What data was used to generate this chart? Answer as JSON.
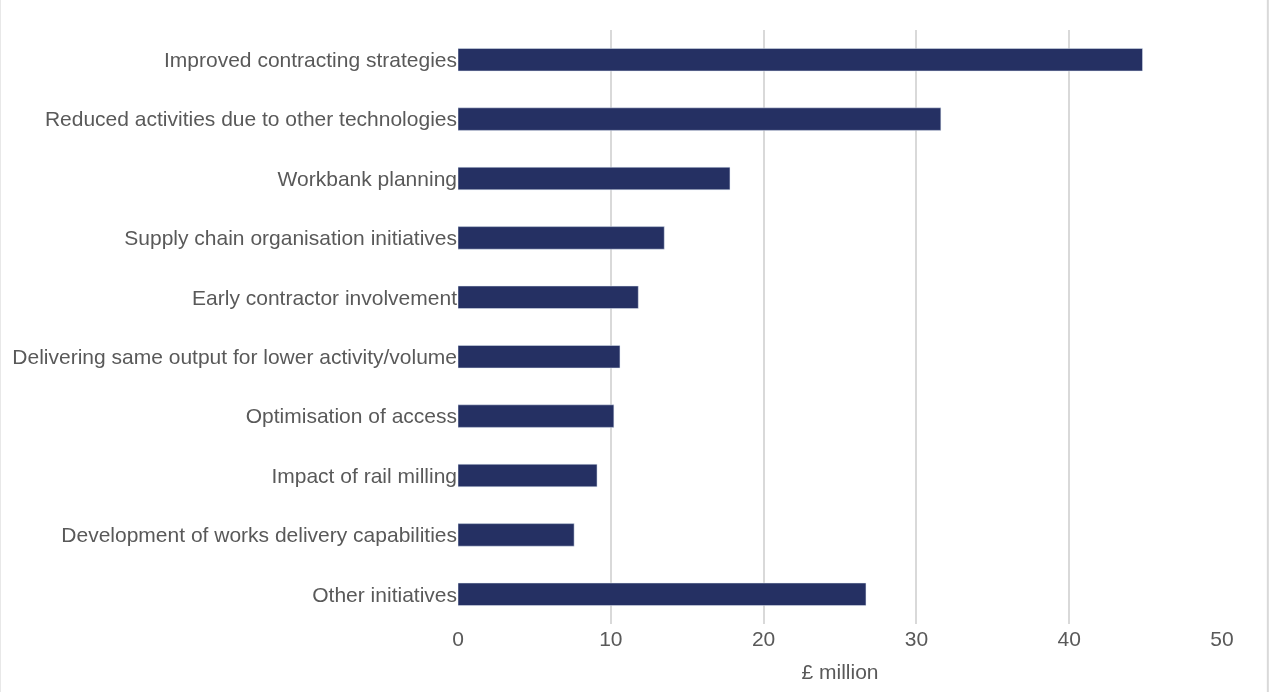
{
  "chart_data": {
    "type": "bar",
    "orientation": "horizontal",
    "xlabel": "£ million",
    "categories": [
      "Improved contracting strategies",
      "Reduced activities due to other technologies",
      "Workbank planning",
      "Supply chain organisation initiatives",
      "Early contractor involvement",
      "Delivering same output for lower activity/volume",
      "Optimisation of access",
      "Impact of rail milling",
      "Development of works delivery capabilities",
      "Other initiatives"
    ],
    "values": [
      44.8,
      31.6,
      17.8,
      13.5,
      11.8,
      10.6,
      10.2,
      9.1,
      7.6,
      26.7
    ],
    "color": "#253063",
    "xlim": [
      0,
      50
    ],
    "xticks": [
      0,
      10,
      20,
      30,
      40,
      50
    ],
    "grid": "x"
  }
}
